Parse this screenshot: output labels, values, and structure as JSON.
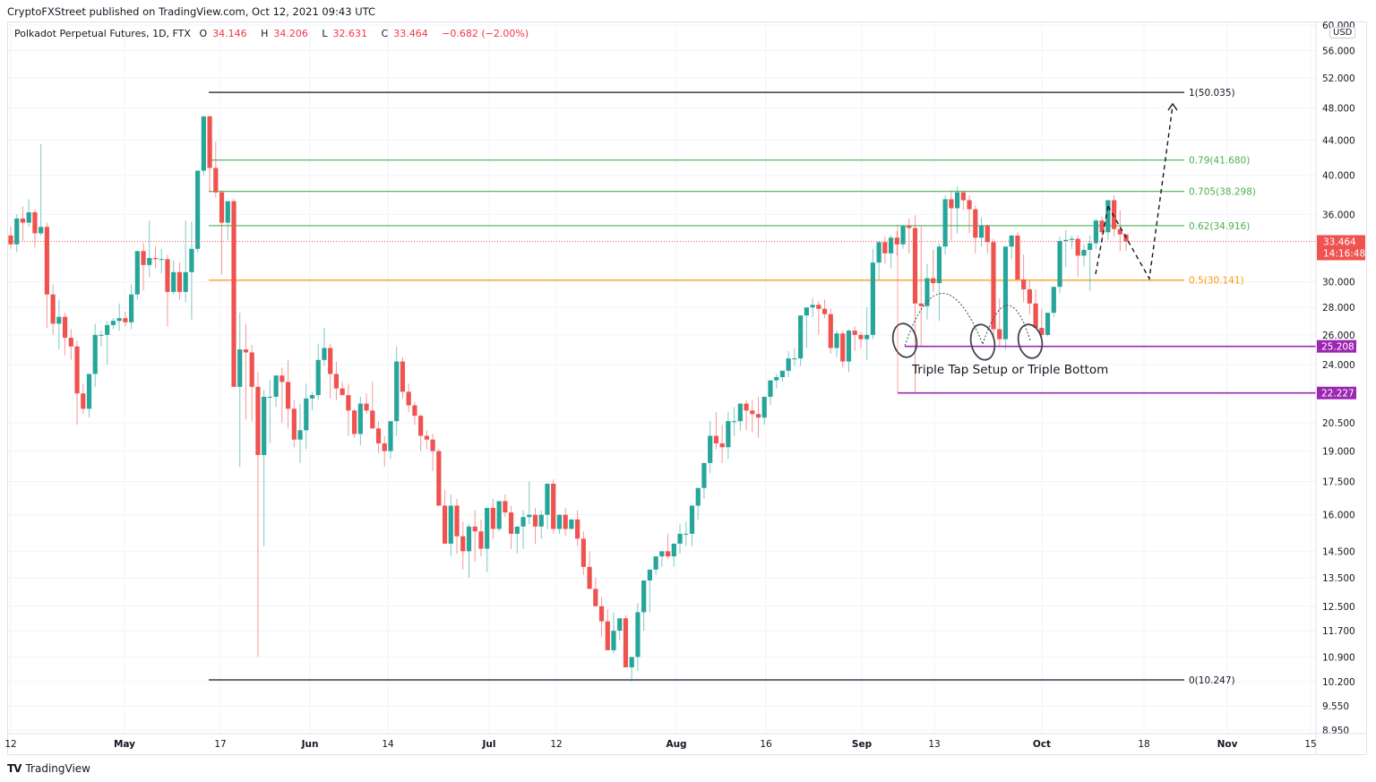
{
  "publisher": "CryptoFXStreet published on TradingView.com, Oct 12, 2021 09:43 UTC",
  "legend": {
    "symbol": "Polkadot Perpetual Futures, 1D, FTX",
    "o_label": "O",
    "o": "34.146",
    "h_label": "H",
    "h": "34.206",
    "l_label": "L",
    "l": "32.631",
    "c_label": "C",
    "c": "33.464",
    "change": "−0.682 (−2.00%)"
  },
  "currency_badge": "USD",
  "current_price_label": {
    "price": "33.464",
    "countdown": "14:16:48",
    "color": "#ef5350"
  },
  "footer": {
    "brand": "TradingView",
    "logo": "TV"
  },
  "colors": {
    "up": "#26a69a",
    "down": "#ef5350",
    "fib_green": "#4caf50",
    "fib_orange": "#ff9800",
    "fib_black": "#131722",
    "support": "#9c27b0",
    "grid": "#f0f3fa"
  },
  "chart_data": {
    "type": "candlestick",
    "title": "Polkadot Perpetual Futures, 1D, FTX",
    "scale": "log",
    "ylim": [
      8.95,
      60.0
    ],
    "y_ticks": [
      "60.000",
      "56.000",
      "52.000",
      "48.000",
      "44.000",
      "40.000",
      "36.000",
      "30.000",
      "28.000",
      "26.000",
      "24.000",
      "20.500",
      "19.000",
      "17.500",
      "16.000",
      "14.500",
      "13.500",
      "12.500",
      "11.700",
      "10.900",
      "10.200",
      "9.550",
      "8.950"
    ],
    "x_ticks": [
      {
        "label": "12",
        "bold": false
      },
      {
        "label": "May",
        "bold": true
      },
      {
        "label": "17",
        "bold": false
      },
      {
        "label": "Jun",
        "bold": true
      },
      {
        "label": "14",
        "bold": false
      },
      {
        "label": "Jul",
        "bold": true
      },
      {
        "label": "12",
        "bold": false
      },
      {
        "label": "Aug",
        "bold": true
      },
      {
        "label": "16",
        "bold": false
      },
      {
        "label": "Sep",
        "bold": true
      },
      {
        "label": "13",
        "bold": false
      },
      {
        "label": "Oct",
        "bold": true
      },
      {
        "label": "18",
        "bold": false
      },
      {
        "label": "Nov",
        "bold": true
      },
      {
        "label": "15",
        "bold": false
      }
    ],
    "fib_levels": [
      {
        "ratio": "1",
        "price": 50.035,
        "label": "1(50.035)",
        "color": "#131722"
      },
      {
        "ratio": "0.79",
        "price": 41.68,
        "label": "0.79(41.680)",
        "color": "#4caf50"
      },
      {
        "ratio": "0.705",
        "price": 38.298,
        "label": "0.705(38.298)",
        "color": "#4caf50"
      },
      {
        "ratio": "0.62",
        "price": 34.916,
        "label": "0.62(34.916)",
        "color": "#4caf50"
      },
      {
        "ratio": "0.5",
        "price": 30.141,
        "label": "0.5(30.141)",
        "color": "#ff9800"
      },
      {
        "ratio": "0",
        "price": 10.247,
        "label": "0(10.247)",
        "color": "#131722"
      }
    ],
    "support_levels": [
      {
        "price": 25.208,
        "label": "25.208",
        "color": "#9c27b0"
      },
      {
        "price": 22.227,
        "label": "22.227",
        "color": "#9c27b0"
      }
    ],
    "annotation": "Triple Tap Setup or Triple Bottom",
    "last_close": 33.464,
    "candles_ohlc": [
      [
        34.0,
        34.8,
        32.8,
        33.2
      ],
      [
        33.2,
        36.0,
        32.5,
        35.6
      ],
      [
        35.6,
        36.8,
        33.5,
        35.2
      ],
      [
        35.2,
        37.5,
        34.8,
        36.2
      ],
      [
        36.2,
        36.5,
        32.9,
        34.2
      ],
      [
        34.2,
        43.5,
        34.0,
        34.8
      ],
      [
        34.8,
        35.2,
        26.5,
        29.0
      ],
      [
        29.0,
        29.8,
        26.0,
        26.8
      ],
      [
        26.8,
        28.6,
        25.0,
        27.3
      ],
      [
        27.3,
        27.6,
        24.6,
        25.8
      ],
      [
        25.8,
        26.4,
        24.3,
        25.2
      ],
      [
        25.2,
        25.6,
        20.4,
        22.2
      ],
      [
        22.2,
        22.8,
        21.0,
        21.3
      ],
      [
        21.3,
        22.0,
        20.8,
        23.4
      ],
      [
        23.4,
        26.8,
        22.6,
        26.0
      ],
      [
        26.0,
        26.3,
        25.2,
        26.0
      ],
      [
        26.0,
        27.0,
        24.0,
        26.7
      ],
      [
        26.7,
        27.2,
        26.4,
        27.0
      ],
      [
        27.0,
        28.3,
        26.3,
        27.2
      ],
      [
        27.2,
        27.7,
        26.6,
        26.9
      ],
      [
        26.9,
        29.8,
        26.4,
        29.0
      ],
      [
        29.0,
        31.6,
        28.6,
        32.6
      ],
      [
        32.6,
        33.3,
        29.3,
        31.4
      ],
      [
        31.4,
        35.4,
        30.4,
        32.0
      ],
      [
        32.0,
        33.0,
        31.1,
        31.9
      ],
      [
        31.9,
        32.8,
        30.7,
        31.9
      ],
      [
        31.9,
        32.3,
        26.6,
        29.2
      ],
      [
        29.2,
        31.8,
        29.0,
        30.8
      ],
      [
        30.8,
        31.6,
        28.6,
        29.2
      ],
      [
        29.2,
        35.4,
        28.4,
        30.8
      ],
      [
        30.8,
        35.3,
        27.1,
        32.8
      ],
      [
        32.8,
        36.6,
        32.5,
        40.5
      ],
      [
        40.5,
        46.6,
        40.0,
        46.9
      ],
      [
        46.9,
        47.0,
        38.2,
        40.8
      ],
      [
        40.8,
        43.8,
        37.7,
        38.2
      ],
      [
        38.2,
        38.4,
        30.6,
        35.2
      ],
      [
        35.2,
        36.0,
        33.6,
        37.3
      ],
      [
        37.3,
        37.5,
        23.6,
        22.6
      ],
      [
        22.6,
        27.6,
        18.2,
        25.0
      ],
      [
        25.0,
        26.8,
        20.7,
        24.8
      ],
      [
        24.8,
        25.3,
        20.6,
        22.6
      ],
      [
        22.6,
        23.5,
        10.9,
        18.8
      ],
      [
        18.8,
        22.4,
        14.7,
        22.0
      ],
      [
        22.0,
        23.0,
        19.4,
        22.0
      ],
      [
        22.0,
        23.3,
        21.4,
        23.3
      ],
      [
        23.3,
        23.8,
        20.5,
        22.9
      ],
      [
        22.9,
        24.3,
        20.2,
        21.3
      ],
      [
        21.3,
        21.8,
        19.2,
        19.6
      ],
      [
        19.6,
        21.6,
        18.4,
        20.1
      ],
      [
        20.1,
        22.8,
        19.1,
        21.9
      ],
      [
        21.9,
        22.3,
        21.2,
        22.1
      ],
      [
        22.1,
        25.4,
        21.8,
        24.3
      ],
      [
        24.3,
        26.5,
        23.9,
        25.1
      ],
      [
        25.1,
        25.4,
        21.9,
        23.4
      ],
      [
        23.4,
        24.2,
        21.8,
        22.5
      ],
      [
        22.5,
        22.9,
        22.3,
        22.1
      ],
      [
        22.1,
        22.8,
        19.8,
        21.2
      ],
      [
        21.2,
        21.3,
        19.7,
        19.9
      ],
      [
        19.9,
        22.0,
        19.3,
        21.6
      ],
      [
        21.6,
        22.2,
        21.0,
        21.2
      ],
      [
        21.2,
        22.9,
        20.8,
        20.2
      ],
      [
        20.2,
        20.6,
        18.9,
        19.4
      ],
      [
        19.4,
        19.8,
        18.2,
        19.0
      ],
      [
        19.0,
        20.2,
        18.6,
        20.6
      ],
      [
        20.6,
        25.2,
        19.8,
        24.2
      ],
      [
        24.2,
        24.5,
        21.9,
        22.3
      ],
      [
        22.3,
        22.8,
        21.1,
        21.5
      ],
      [
        21.5,
        21.7,
        20.4,
        20.9
      ],
      [
        20.9,
        21.0,
        19.0,
        19.8
      ],
      [
        19.8,
        20.1,
        19.1,
        19.6
      ],
      [
        19.6,
        19.9,
        18.0,
        19.0
      ],
      [
        19.0,
        19.1,
        17.5,
        16.4
      ],
      [
        16.4,
        17.1,
        15.2,
        14.8
      ],
      [
        14.8,
        16.9,
        14.3,
        16.4
      ],
      [
        16.4,
        16.7,
        14.4,
        15.1
      ],
      [
        15.1,
        15.7,
        13.8,
        14.5
      ],
      [
        14.5,
        15.6,
        13.5,
        15.5
      ],
      [
        15.5,
        16.2,
        14.1,
        15.3
      ],
      [
        15.3,
        15.8,
        14.3,
        14.6
      ],
      [
        14.6,
        15.5,
        13.7,
        16.3
      ],
      [
        16.3,
        16.7,
        15.0,
        15.4
      ],
      [
        15.4,
        16.6,
        15.3,
        16.6
      ],
      [
        16.6,
        16.9,
        15.9,
        16.1
      ],
      [
        16.1,
        16.4,
        14.6,
        15.2
      ],
      [
        15.2,
        15.4,
        14.4,
        15.5
      ],
      [
        15.5,
        16.2,
        14.6,
        15.9
      ],
      [
        15.9,
        17.5,
        15.6,
        16.0
      ],
      [
        16.0,
        16.3,
        14.8,
        15.5
      ],
      [
        15.5,
        16.2,
        15.0,
        16.0
      ],
      [
        16.0,
        16.7,
        15.4,
        17.4
      ],
      [
        17.4,
        17.6,
        15.2,
        15.4
      ],
      [
        15.4,
        15.9,
        15.2,
        16.0
      ],
      [
        16.0,
        16.3,
        15.1,
        15.4
      ],
      [
        15.4,
        15.7,
        15.5,
        15.8
      ],
      [
        15.8,
        16.2,
        14.7,
        15.0
      ],
      [
        15.0,
        15.3,
        13.6,
        13.9
      ],
      [
        13.9,
        14.5,
        13.5,
        13.1
      ],
      [
        13.1,
        13.5,
        12.6,
        12.5
      ],
      [
        12.5,
        12.8,
        11.5,
        12.0
      ],
      [
        12.0,
        12.4,
        11.7,
        11.1
      ],
      [
        11.1,
        12.3,
        11.0,
        11.7
      ],
      [
        11.7,
        11.8,
        11.4,
        12.1
      ],
      [
        12.1,
        12.2,
        10.8,
        10.6
      ],
      [
        10.6,
        10.8,
        10.2,
        10.9
      ],
      [
        10.9,
        12.6,
        10.5,
        12.3
      ],
      [
        12.3,
        13.3,
        11.7,
        13.4
      ],
      [
        13.4,
        13.6,
        12.3,
        13.8
      ],
      [
        13.8,
        14.3,
        13.6,
        14.3
      ],
      [
        14.3,
        14.4,
        13.9,
        14.5
      ],
      [
        14.5,
        15.2,
        14.2,
        14.3
      ],
      [
        14.3,
        14.6,
        13.9,
        14.8
      ],
      [
        14.8,
        15.6,
        14.4,
        15.2
      ],
      [
        15.2,
        15.7,
        14.7,
        15.2
      ],
      [
        15.2,
        15.7,
        14.7,
        16.4
      ],
      [
        16.4,
        16.8,
        15.8,
        17.2
      ],
      [
        17.2,
        18.2,
        16.7,
        18.4
      ],
      [
        18.4,
        20.6,
        17.9,
        19.8
      ],
      [
        19.8,
        21.1,
        19.1,
        19.4
      ],
      [
        19.4,
        20.4,
        18.4,
        19.2
      ],
      [
        19.2,
        21.1,
        18.6,
        20.6
      ],
      [
        20.6,
        21.4,
        19.8,
        20.6
      ],
      [
        20.6,
        21.1,
        20.1,
        21.6
      ],
      [
        21.6,
        21.8,
        20.1,
        21.2
      ],
      [
        21.2,
        21.8,
        20.0,
        21.0
      ],
      [
        21.0,
        22.0,
        19.7,
        20.8
      ],
      [
        20.8,
        21.9,
        20.4,
        22.0
      ],
      [
        22.0,
        22.7,
        21.5,
        23.0
      ],
      [
        23.0,
        23.4,
        22.5,
        23.2
      ],
      [
        23.2,
        23.5,
        22.9,
        23.6
      ],
      [
        23.6,
        24.9,
        23.2,
        24.4
      ],
      [
        24.4,
        25.1,
        23.9,
        24.4
      ],
      [
        24.4,
        27.4,
        23.9,
        27.4
      ],
      [
        27.4,
        27.8,
        25.1,
        28.0
      ],
      [
        28.0,
        28.7,
        27.3,
        28.2
      ],
      [
        28.2,
        28.5,
        26.0,
        27.9
      ],
      [
        27.9,
        28.6,
        27.2,
        27.5
      ],
      [
        27.5,
        27.9,
        24.7,
        25.1
      ],
      [
        25.1,
        26.3,
        24.5,
        26.1
      ],
      [
        26.1,
        26.3,
        23.8,
        24.2
      ],
      [
        24.2,
        26.4,
        23.5,
        26.3
      ],
      [
        26.3,
        26.6,
        24.9,
        26.0
      ],
      [
        26.0,
        26.2,
        25.1,
        25.7
      ],
      [
        25.7,
        28.0,
        24.3,
        26.0
      ],
      [
        26.0,
        32.8,
        25.7,
        31.6
      ],
      [
        31.6,
        33.1,
        30.2,
        33.4
      ],
      [
        33.4,
        33.9,
        31.5,
        32.4
      ],
      [
        32.4,
        34.0,
        31.1,
        33.8
      ],
      [
        33.8,
        34.4,
        32.2,
        33.2
      ],
      [
        33.2,
        34.6,
        32.8,
        34.9
      ],
      [
        34.9,
        35.6,
        32.4,
        34.7
      ],
      [
        34.7,
        35.9,
        22.2,
        28.3
      ],
      [
        28.3,
        34.8,
        25.2,
        28.1
      ],
      [
        28.1,
        31.5,
        27.1,
        30.3
      ],
      [
        30.3,
        32.7,
        29.2,
        29.9
      ],
      [
        29.9,
        33.3,
        27.0,
        33.0
      ],
      [
        33.0,
        37.9,
        32.3,
        37.5
      ],
      [
        37.5,
        38.4,
        33.6,
        36.6
      ],
      [
        36.6,
        38.8,
        34.2,
        38.2
      ],
      [
        38.2,
        38.4,
        36.4,
        37.4
      ],
      [
        37.4,
        37.9,
        34.2,
        36.5
      ],
      [
        36.5,
        36.9,
        32.4,
        33.8
      ],
      [
        33.8,
        35.7,
        33.0,
        34.9
      ],
      [
        34.9,
        35.1,
        32.4,
        33.4
      ],
      [
        33.4,
        33.7,
        25.8,
        26.4
      ],
      [
        26.4,
        28.7,
        25.2,
        25.7
      ],
      [
        25.7,
        28.9,
        25.0,
        33.0
      ],
      [
        33.0,
        33.5,
        31.9,
        34.0
      ],
      [
        34.0,
        34.3,
        30.4,
        30.2
      ],
      [
        30.2,
        32.3,
        28.4,
        29.4
      ],
      [
        29.4,
        30.1,
        27.5,
        28.3
      ],
      [
        28.3,
        29.4,
        26.8,
        26.5
      ],
      [
        26.5,
        27.9,
        25.7,
        26.0
      ],
      [
        26.0,
        27.4,
        25.9,
        27.6
      ],
      [
        27.6,
        29.4,
        27.3,
        29.6
      ],
      [
        29.6,
        33.9,
        29.1,
        33.5
      ],
      [
        33.5,
        34.5,
        31.2,
        33.6
      ],
      [
        33.6,
        34.0,
        32.8,
        33.7
      ],
      [
        33.7,
        34.0,
        30.4,
        32.2
      ],
      [
        32.2,
        33.2,
        31.3,
        32.7
      ],
      [
        32.7,
        34.0,
        29.3,
        33.3
      ],
      [
        33.3,
        35.6,
        32.8,
        35.4
      ],
      [
        35.4,
        35.8,
        33.4,
        34.3
      ],
      [
        34.3,
        37.3,
        33.6,
        37.4
      ],
      [
        37.4,
        37.9,
        33.9,
        34.6
      ],
      [
        34.6,
        36.4,
        32.6,
        34.1
      ],
      [
        34.1,
        34.2,
        32.6,
        33.464
      ]
    ]
  }
}
